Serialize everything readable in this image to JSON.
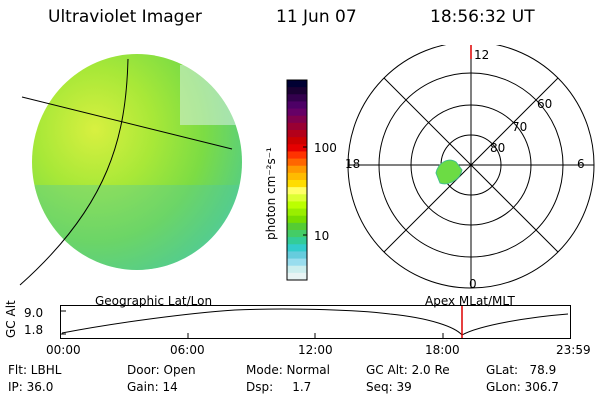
{
  "header": {
    "instrument": "Ultraviolet Imager",
    "date": "11 Jun 07",
    "time": "18:56:32 UT"
  },
  "colorbar": {
    "label": "photon cm⁻²s⁻¹",
    "ticks": [
      "100",
      "10"
    ],
    "colors": [
      "#000033",
      "#1a0033",
      "#33004d",
      "#4d0066",
      "#660066",
      "#80004d",
      "#990033",
      "#b3001a",
      "#cc0000",
      "#e60000",
      "#ff3300",
      "#ff6600",
      "#ff9900",
      "#ffbb00",
      "#ffdd00",
      "#ffff66",
      "#ddff33",
      "#bbff00",
      "#99ee00",
      "#77dd00",
      "#55cc33",
      "#44cc66",
      "#33cc99",
      "#33cccc",
      "#66ccdd",
      "#99ddee",
      "#cceeee",
      "#e8f4f4"
    ]
  },
  "polar_plot": {
    "hour_labels": [
      "12",
      "18",
      "6",
      "0"
    ],
    "lat_labels": [
      "60",
      "70",
      "80"
    ]
  },
  "timeline": {
    "left_title": "Geographic Lat/Lon",
    "right_title": "Apex MLat/MLT",
    "ylabel": "GC Alt",
    "yticks": [
      "9.0",
      "1.8"
    ],
    "xticks": [
      "00:00",
      "06:00",
      "12:00",
      "18:00",
      "23:59"
    ],
    "marker_color": "#dd0000"
  },
  "info": {
    "filter": "Flt: LBHL",
    "ip": "IP: 36.0",
    "door": "Door: Open",
    "gain": "Gain: 14",
    "mode": "Mode: Normal",
    "dsp": "Dsp:     1.7",
    "gc_alt": "GC Alt: 2.0 Re",
    "seq": "Seq: 39",
    "glat": "GLat:   78.9",
    "glon": "GLon: 306.7"
  }
}
